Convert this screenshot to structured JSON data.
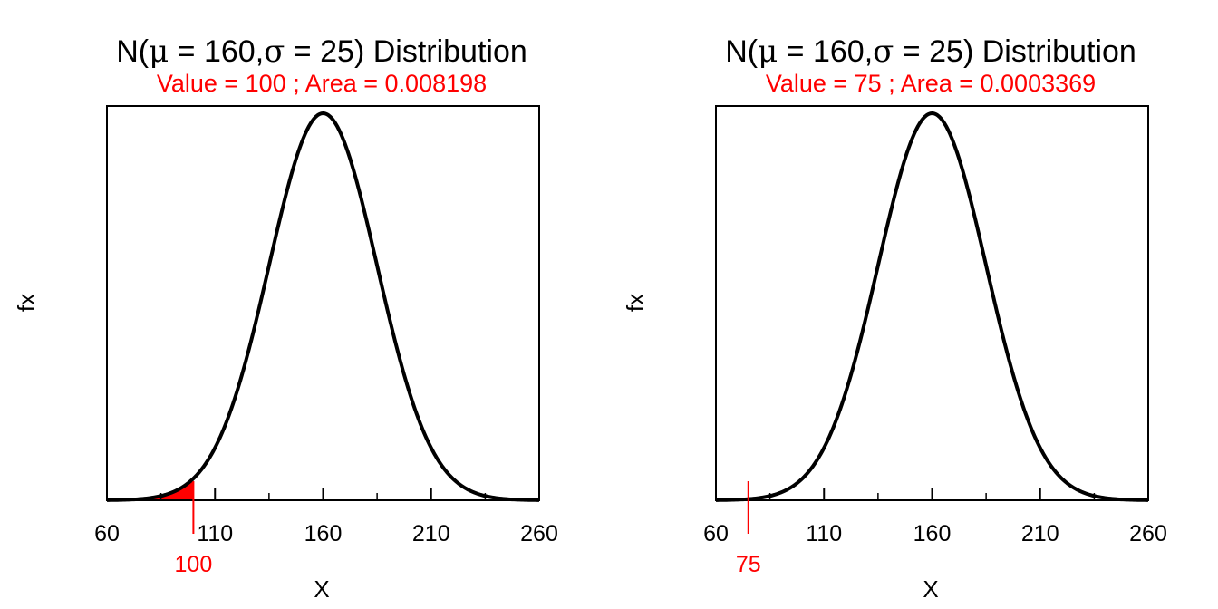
{
  "colors": {
    "highlight": "#ff0000",
    "curve": "#000000",
    "frame": "#000000"
  },
  "chart_data": [
    {
      "type": "area",
      "title_prefix": "N(",
      "mu_symbol": "μ",
      "sigma_symbol": "σ",
      "mu": 160,
      "sigma": 25,
      "title_suffix": ") Distribution",
      "subtitle": "Value = 100 ; Area = 0.008198",
      "value": 100,
      "value_label": "100",
      "area": 0.008198,
      "xlabel": "X",
      "ylabel": "fx",
      "xlim": [
        60,
        260
      ],
      "xticks_major": [
        60,
        110,
        160,
        210,
        260
      ],
      "xtick_labels": [
        "60",
        "110",
        "160",
        "210",
        "260"
      ],
      "xticks_minor": [
        85,
        135,
        185,
        235
      ],
      "shaded_region": "lower tail below value"
    },
    {
      "type": "area",
      "title_prefix": "N(",
      "mu_symbol": "μ",
      "sigma_symbol": "σ",
      "mu": 160,
      "sigma": 25,
      "title_suffix": ") Distribution",
      "subtitle": "Value = 75 ; Area = 0.0003369",
      "value": 75,
      "value_label": "75",
      "area": 0.0003369,
      "xlabel": "X",
      "ylabel": "fx",
      "xlim": [
        60,
        260
      ],
      "xticks_major": [
        60,
        110,
        160,
        210,
        260
      ],
      "xtick_labels": [
        "60",
        "110",
        "160",
        "210",
        "260"
      ],
      "xticks_minor": [
        85,
        135,
        185,
        235
      ],
      "shaded_region": "lower tail below value"
    }
  ]
}
